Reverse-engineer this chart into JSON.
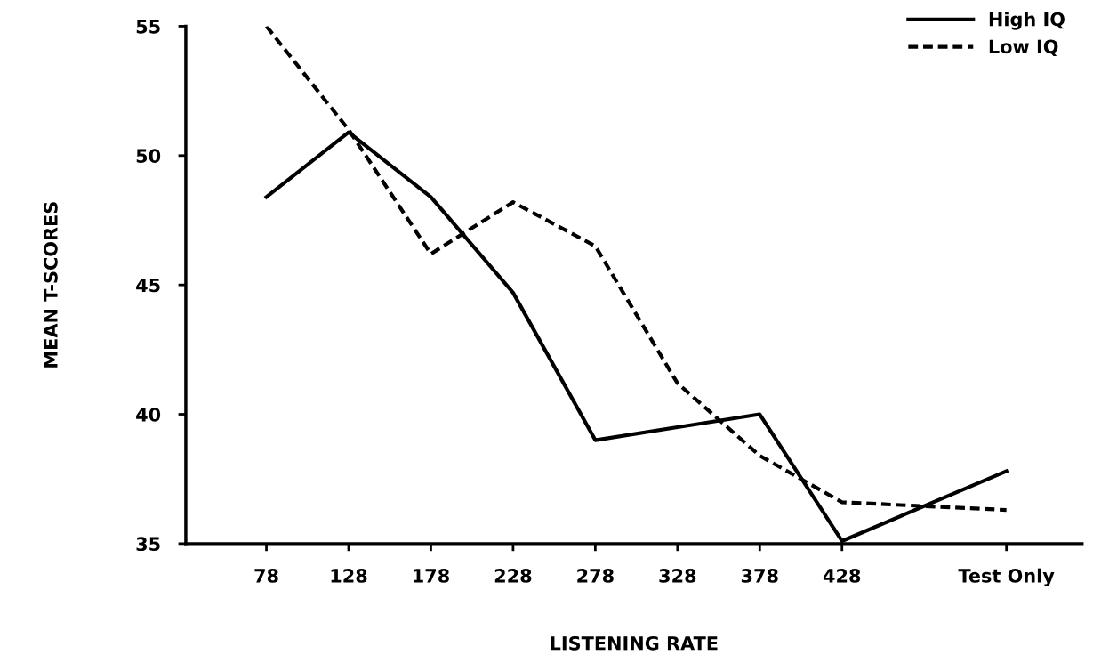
{
  "chart_data": {
    "type": "line",
    "xlabel": "LISTENING RATE",
    "ylabel": "MEAN T-SCORES",
    "x": [
      78,
      128,
      178,
      228,
      278,
      328,
      378,
      428,
      528
    ],
    "xlim": [
      29,
      574
    ],
    "xticks": [
      78,
      128,
      178,
      228,
      278,
      328,
      378,
      428,
      {
        "value": 528,
        "label": "Test Only"
      }
    ],
    "ylim": [
      35,
      55
    ],
    "yticks": [
      35,
      40,
      45,
      50,
      55
    ],
    "grid": false,
    "legend": "top right",
    "marker": "none",
    "series": [
      {
        "name": "High IQ",
        "color": "#000000",
        "line_style": "solid",
        "values": [
          48.4,
          50.9,
          48.4,
          44.7,
          39.0,
          39.5,
          40.0,
          35.1,
          37.8
        ]
      },
      {
        "name": "Low IQ",
        "color": "#000000",
        "line_style": "dashed",
        "values": [
          55.0,
          51.0,
          46.2,
          48.2,
          46.5,
          41.2,
          38.4,
          36.6,
          36.3
        ]
      }
    ]
  }
}
